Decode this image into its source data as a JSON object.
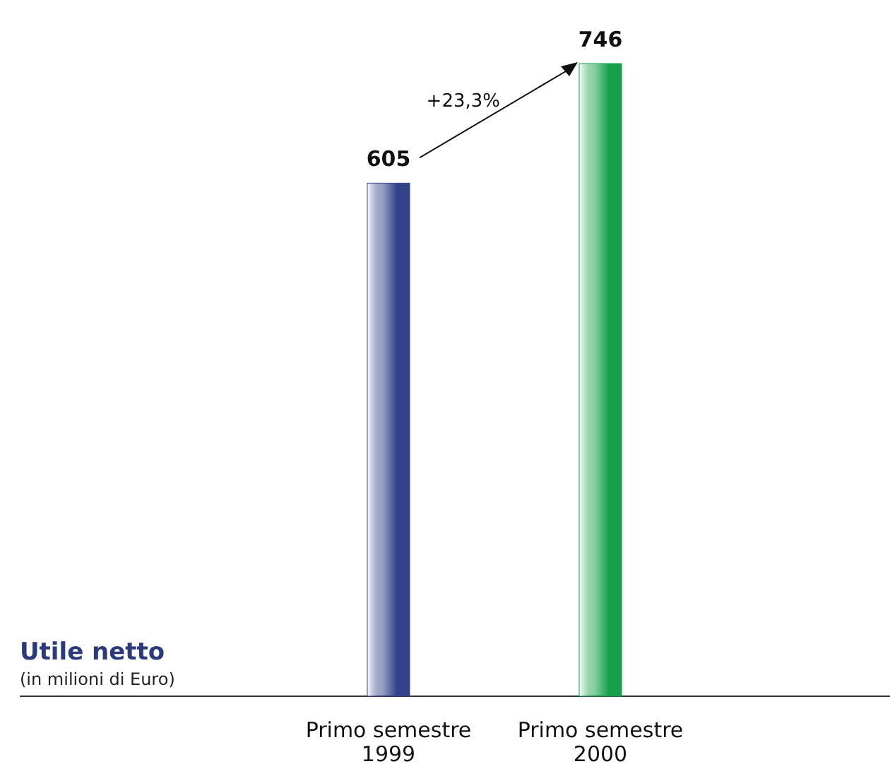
{
  "chart_data": {
    "type": "bar",
    "title": "Utile netto",
    "subtitle": "(in milioni di Euro)",
    "categories": [
      "Primo semestre 1999",
      "Primo semestre 2000"
    ],
    "values": [
      605,
      746
    ],
    "colors": [
      "#34428a",
      "#16a04a"
    ],
    "data_labels": true,
    "annotations": [
      "+23,3%"
    ]
  }
}
